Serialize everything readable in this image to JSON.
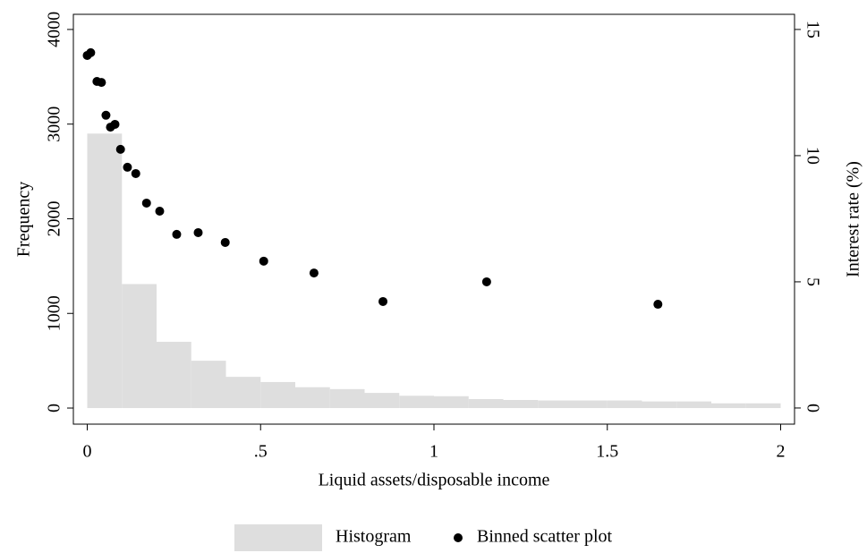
{
  "chart_data": {
    "type": "histogram",
    "xlabel": "Liquid assets/disposable income",
    "ylabel": "Frequency",
    "y2label": "Interest rate (%)",
    "xlim": [
      -0.04,
      2.04
    ],
    "ylim": [
      -170,
      4160
    ],
    "y2lim": [
      -0.64,
      15.6
    ],
    "xticks": [
      0,
      {
        "value": 0.5,
        "label": ".5"
      },
      1,
      1.5,
      2
    ],
    "yticks": [
      0,
      1000,
      2000,
      3000,
      4000
    ],
    "y2ticks": [
      0,
      5,
      10,
      15
    ],
    "grid": false,
    "legend": "bottom",
    "series": [
      {
        "name": "Histogram",
        "type": "histogram",
        "color": "#dedede",
        "bins": [
          0,
          0.1,
          0.2,
          0.3,
          0.4,
          0.5,
          0.6,
          0.7,
          0.8,
          0.9,
          1.0,
          1.1,
          1.2,
          1.3,
          1.4,
          1.5,
          1.6,
          1.7,
          1.8,
          1.9,
          2.0
        ],
        "values": [
          2900,
          1310,
          700,
          500,
          330,
          275,
          220,
          200,
          160,
          130,
          125,
          95,
          85,
          80,
          80,
          80,
          70,
          70,
          50,
          50
        ]
      },
      {
        "name": "Binned scatter plot",
        "type": "scatter",
        "color": "#000000",
        "axis": "y2",
        "x": [
          0,
          0.01,
          0.028,
          0.041,
          0.054,
          0.067,
          0.08,
          0.096,
          0.116,
          0.14,
          0.171,
          0.209,
          0.258,
          0.32,
          0.398,
          0.509,
          0.654,
          0.853,
          1.152,
          1.646
        ],
        "values": [
          13.97,
          14.08,
          12.94,
          12.9,
          11.6,
          11.13,
          11.24,
          10.25,
          9.54,
          9.29,
          8.12,
          7.8,
          6.88,
          6.95,
          6.56,
          5.82,
          5.35,
          4.22,
          5.0,
          4.11
        ]
      }
    ]
  }
}
